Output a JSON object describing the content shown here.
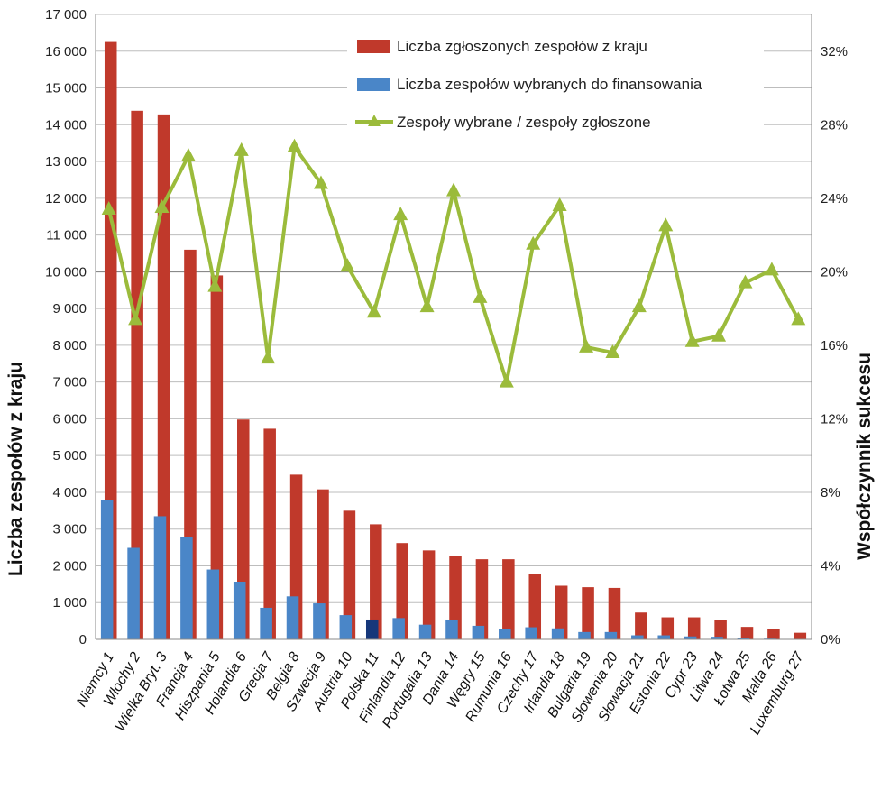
{
  "chart_data": {
    "type": "bar",
    "categories": [
      "Niemcy 1",
      "Włochy 2",
      "Wielka Bryt. 3",
      "Francja 4",
      "Hiszpania 5",
      "Holandia 6",
      "Grecja 7",
      "Belgia 8",
      "Szwecja 9",
      "Austria 10",
      "Polska 11",
      "Finlandia 12",
      "Portugalia 13",
      "Dania 14",
      "Węgry 15",
      "Rumunia 16",
      "Czechy 17",
      "Irlandia 18",
      "Bulgaria 19",
      "Słowenia 20",
      "Słowacja 21",
      "Estonia 22",
      "Cypr 23",
      "Litwa 24",
      "Łotwa 25",
      "Malta 26",
      "Luxemburg 27"
    ],
    "series": [
      {
        "name": "Liczba zgłoszonych zespołów z kraju",
        "type": "bar",
        "axis": "left",
        "color": "#c0392b",
        "values": [
          16250,
          14380,
          14280,
          10600,
          9900,
          5980,
          5730,
          4480,
          4080,
          3500,
          3130,
          2620,
          2420,
          2280,
          2180,
          2180,
          1770,
          1460,
          1420,
          1400,
          730,
          600,
          600,
          530,
          340,
          270,
          180
        ]
      },
      {
        "name": "Liczba zespołów wybranych do finansowania",
        "type": "bar",
        "axis": "left",
        "color": "#4a86c8",
        "values": [
          3800,
          2490,
          3350,
          2780,
          1900,
          1570,
          860,
          1170,
          980,
          660,
          540,
          580,
          400,
          540,
          370,
          270,
          330,
          300,
          200,
          200,
          110,
          110,
          80,
          70,
          40,
          20,
          10
        ]
      },
      {
        "name": "Zespoły wybrane / zespoły zgłoszone",
        "type": "line",
        "axis": "right",
        "color": "#9bbb3b",
        "values": [
          23.4,
          17.4,
          23.5,
          26.3,
          19.2,
          26.6,
          15.3,
          26.8,
          24.8,
          20.3,
          17.8,
          23.1,
          18.1,
          24.4,
          18.6,
          14.0,
          21.5,
          23.6,
          15.9,
          15.6,
          18.1,
          22.5,
          16.2,
          16.5,
          19.4,
          20.1,
          17.4
        ]
      }
    ],
    "ylabel": "Liczba zespołów z kraju",
    "y2label": "Współczynnik sukcesu",
    "ylim": [
      0,
      17000
    ],
    "y2lim": [
      0,
      34
    ],
    "yticks": [
      "0",
      "1 000",
      "2 000",
      "3 000",
      "4 000",
      "5 000",
      "6 000",
      "7 000",
      "8 000",
      "9 000",
      "10 000",
      "11 000",
      "12 000",
      "13 000",
      "14 000",
      "15 000",
      "16 000",
      "17 000"
    ],
    "y2ticks": [
      "0%",
      "4%",
      "8%",
      "12%",
      "16%",
      "20%",
      "24%",
      "28%",
      "32%"
    ],
    "grid": true,
    "legend": "top-right"
  }
}
